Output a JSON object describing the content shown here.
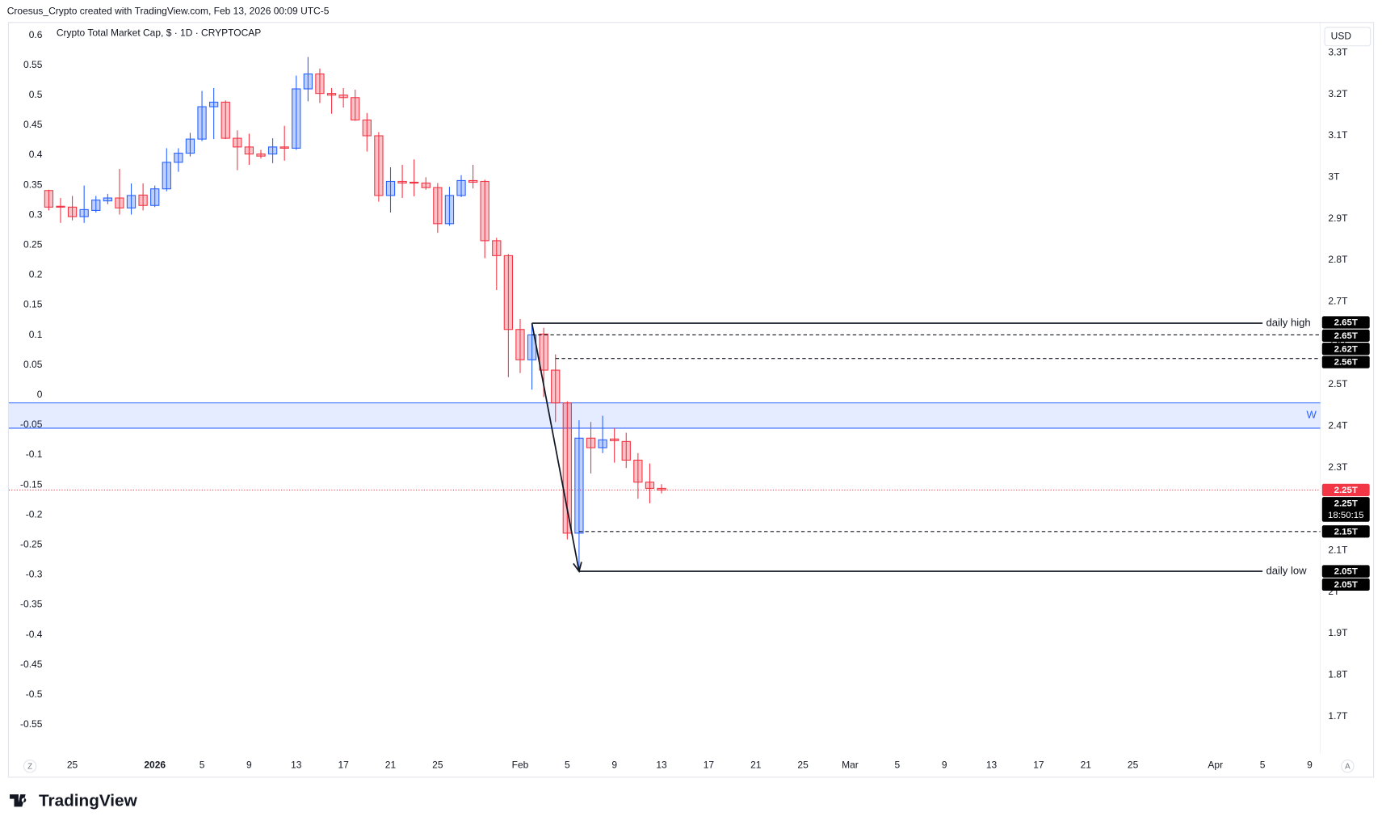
{
  "header": {
    "attribution": "Croesus_Crypto created with TradingView.com, Feb 13, 2026 00:09 UTC-5"
  },
  "logo": "TradingView",
  "buttons": {
    "left": "Z",
    "right": "A"
  },
  "currency": "USD",
  "chart_data": {
    "type": "candlestick",
    "title": "Crypto Total Market Cap, $ · 1D · CRYPTOCAP",
    "x": [
      0,
      1,
      2,
      3,
      4,
      5,
      6,
      7,
      8,
      9,
      10,
      11,
      12,
      13,
      14,
      15,
      16,
      17,
      18,
      19,
      20,
      21,
      22,
      23,
      24,
      25,
      26,
      27,
      28,
      29,
      30,
      31,
      32,
      33,
      34,
      35,
      36,
      37,
      38,
      39,
      40,
      41,
      42,
      43,
      44,
      45,
      46,
      47,
      48,
      49,
      50,
      51,
      52
    ],
    "open": [
      2.968,
      2.93,
      2.928,
      2.905,
      2.92,
      2.943,
      2.95,
      2.926,
      2.957,
      2.932,
      2.972,
      3.036,
      3.058,
      3.092,
      3.17,
      3.181,
      3.094,
      3.073,
      3.056,
      3.056,
      3.073,
      3.07,
      3.213,
      3.249,
      3.202,
      3.198,
      3.192,
      3.138,
      3.1,
      2.956,
      2.99,
      2.988,
      2.986,
      2.975,
      2.888,
      2.956,
      2.992,
      2.99,
      2.847,
      2.811,
      2.633,
      2.56,
      2.622,
      2.535,
      2.456,
      2.142,
      2.371,
      2.348,
      2.369,
      2.363,
      2.318,
      2.265,
      2.25
    ],
    "high": [
      2.97,
      2.95,
      2.955,
      2.98,
      2.955,
      2.96,
      3.02,
      2.985,
      2.985,
      2.98,
      3.07,
      3.07,
      3.107,
      3.208,
      3.215,
      3.185,
      3.113,
      3.105,
      3.066,
      3.094,
      3.124,
      3.245,
      3.29,
      3.262,
      3.215,
      3.215,
      3.211,
      3.155,
      3.109,
      3.024,
      3.03,
      3.043,
      3.0,
      2.986,
      2.977,
      3.005,
      3.03,
      2.994,
      2.854,
      2.815,
      2.658,
      2.648,
      2.637,
      2.573,
      2.46,
      2.414,
      2.41,
      2.425,
      2.395,
      2.384,
      2.335,
      2.31,
      2.26
    ],
    "low": [
      2.92,
      2.89,
      2.896,
      2.89,
      2.915,
      2.935,
      2.91,
      2.91,
      2.92,
      2.928,
      2.966,
      3.013,
      3.05,
      3.087,
      3.092,
      3.092,
      3.017,
      3.03,
      3.045,
      3.034,
      3.04,
      3.066,
      3.183,
      3.179,
      3.153,
      3.168,
      3.136,
      3.062,
      2.941,
      2.915,
      2.95,
      2.954,
      2.97,
      2.866,
      2.883,
      2.952,
      2.973,
      2.805,
      2.728,
      2.518,
      2.528,
      2.488,
      2.47,
      2.41,
      2.127,
      2.05,
      2.286,
      2.335,
      2.312,
      2.299,
      2.225,
      2.214,
      2.238
    ],
    "close": [
      2.928,
      2.928,
      2.905,
      2.922,
      2.945,
      2.95,
      2.926,
      2.956,
      2.932,
      2.972,
      3.036,
      3.058,
      3.092,
      3.17,
      3.181,
      3.094,
      3.073,
      3.056,
      3.051,
      3.073,
      3.07,
      3.213,
      3.249,
      3.202,
      3.198,
      3.192,
      3.138,
      3.1,
      2.956,
      2.99,
      2.986,
      2.986,
      2.975,
      2.888,
      2.956,
      2.992,
      2.988,
      2.847,
      2.811,
      2.633,
      2.56,
      2.62,
      2.535,
      2.456,
      2.142,
      2.371,
      2.348,
      2.367,
      2.365,
      2.318,
      2.265,
      2.25,
      2.246
    ],
    "up_color": "#2962ff",
    "down_color": "#f23645",
    "xlim": [
      -3.39,
      107.9
    ],
    "xticks": [
      {
        "value": 2,
        "label": "25"
      },
      {
        "value": 9,
        "label": "2026"
      },
      {
        "value": 13,
        "label": "5"
      },
      {
        "value": 17,
        "label": "9"
      },
      {
        "value": 21,
        "label": "13"
      },
      {
        "value": 25,
        "label": "17"
      },
      {
        "value": 29,
        "label": "21"
      },
      {
        "value": 33,
        "label": "25"
      },
      {
        "value": 40,
        "label": "Feb"
      },
      {
        "value": 44,
        "label": "5"
      },
      {
        "value": 48,
        "label": "9"
      },
      {
        "value": 52,
        "label": "13"
      },
      {
        "value": 56,
        "label": "17"
      },
      {
        "value": 60,
        "label": "21"
      },
      {
        "value": 64,
        "label": "25"
      },
      {
        "value": 68,
        "label": "Mar"
      },
      {
        "value": 72,
        "label": "5"
      },
      {
        "value": 76,
        "label": "9"
      },
      {
        "value": 80,
        "label": "13"
      },
      {
        "value": 84,
        "label": "17"
      },
      {
        "value": 88,
        "label": "21"
      },
      {
        "value": 92,
        "label": "25"
      },
      {
        "value": 99,
        "label": "Apr"
      },
      {
        "value": 103,
        "label": "5"
      },
      {
        "value": 107,
        "label": "9"
      }
    ],
    "ylim": [
      1.61,
      3.372
    ],
    "yticks": [
      {
        "value": 3.3,
        "label": "3.3T"
      },
      {
        "value": 3.2,
        "label": "3.2T"
      },
      {
        "value": 3.1,
        "label": "3.1T"
      },
      {
        "value": 3,
        "label": "3T"
      },
      {
        "value": 2.9,
        "label": "2.9T"
      },
      {
        "value": 2.8,
        "label": "2.8T"
      },
      {
        "value": 2.7,
        "label": "2.7T"
      },
      {
        "value": 2.6,
        "label": "2.6T"
      },
      {
        "value": 2.5,
        "label": "2.5T"
      },
      {
        "value": 2.4,
        "label": "2.4T"
      },
      {
        "value": 2.3,
        "label": "2.3T"
      },
      {
        "value": 2.2,
        "label": "2.2T"
      },
      {
        "value": 2.1,
        "label": "2.1T"
      },
      {
        "value": 2,
        "label": "2T"
      },
      {
        "value": 1.9,
        "label": "1.9T"
      },
      {
        "value": 1.8,
        "label": "1.8T"
      },
      {
        "value": 1.7,
        "label": "1.7T"
      }
    ],
    "y2lim": [
      -0.5985,
      0.6206
    ],
    "y2ticks": [
      0.6,
      0.55,
      0.5,
      0.45,
      0.4,
      0.35,
      0.3,
      0.25,
      0.2,
      0.15,
      0.1,
      0.05,
      0,
      -0.05,
      -0.1,
      -0.15,
      -0.2,
      -0.25,
      -0.3,
      -0.35,
      -0.4,
      -0.45,
      -0.5,
      -0.55
    ],
    "grid": false,
    "zone": {
      "label": "W",
      "lim": [
        2.395,
        2.456
      ],
      "color": "#2962ff"
    },
    "levels": [
      {
        "name": "daily high",
        "value": 2.648,
        "x": [
          41,
          103
        ],
        "style": "solid"
      },
      {
        "value": 2.62,
        "x": [
          41,
          107.9
        ],
        "style": "dashed"
      },
      {
        "value": 2.563,
        "x": [
          43,
          107.9
        ],
        "style": "dashed"
      },
      {
        "value": 2.146,
        "x": [
          45,
          107.9
        ],
        "style": "dashed"
      },
      {
        "name": "daily low",
        "value": 2.05,
        "x": [
          45,
          103
        ],
        "style": "solid"
      }
    ],
    "arrow": {
      "x": [
        41,
        45
      ],
      "y": [
        2.648,
        2.05
      ]
    },
    "last_price": 2.246,
    "price_labels": [
      {
        "value": 2.65,
        "label": "2.65T",
        "color": "#000000"
      },
      {
        "value": 2.648,
        "label": "2.65T",
        "color": "#000000"
      },
      {
        "value": 2.62,
        "label": "2.62T",
        "color": "#000000"
      },
      {
        "value": 2.563,
        "label": "2.56T",
        "color": "#000000"
      },
      {
        "value": 2.246,
        "label": "2.25T",
        "color": "#f23645"
      },
      {
        "value": 2.246,
        "label": "2.25T",
        "color": "#000000",
        "countdown": "18:50:15"
      },
      {
        "value": 2.146,
        "label": "2.15T",
        "color": "#000000"
      },
      {
        "value": 2.05,
        "label": "2.05T",
        "color": "#000000"
      },
      {
        "value": 2.05,
        "label": "2.05T",
        "color": "#000000"
      }
    ]
  }
}
